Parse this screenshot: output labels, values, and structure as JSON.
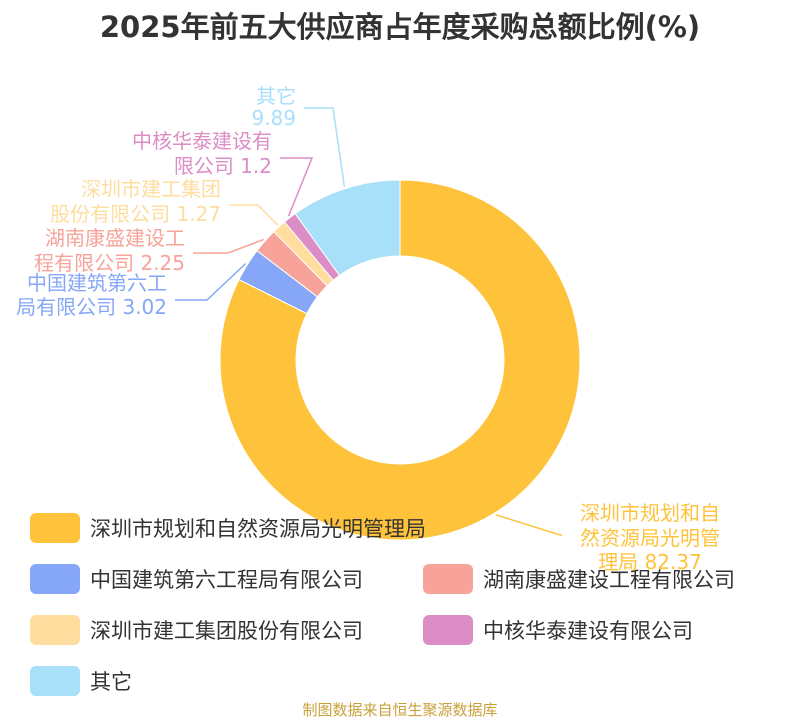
{
  "chart_data": {
    "type": "pie",
    "title": "2025年前五大供应商占年度采购总额比例(%)",
    "categories": [
      "深圳市规划和自然资源局光明管理局",
      "中国建筑第六工程局有限公司",
      "湖南康盛建设工程有限公司",
      "深圳市建工集团股份有限公司",
      "中核华泰建设有限公司",
      "其它"
    ],
    "values": [
      82.37,
      3.02,
      2.25,
      1.27,
      1.2,
      9.89
    ],
    "slice_labels": [
      [
        "深圳市规划和自",
        "然资源局光明管",
        "理局 82.37"
      ],
      [
        "中国建筑第六工",
        "局有限公司 3.02"
      ],
      [
        "湖南康盛建设工",
        "程有限公司 2.25"
      ],
      [
        "深圳市建工集团",
        "股份有限公司 1.27"
      ],
      [
        "中核华泰建设有",
        "限公司 1.2"
      ],
      [
        "其它",
        "9.89"
      ]
    ],
    "colors": [
      "#fec33a",
      "#86a7f7",
      "#f8a39a",
      "#fedd9e",
      "#dc8dc6",
      "#a8dff9"
    ],
    "donut": true,
    "legend_placement": "bottom"
  },
  "footer": "制图数据来自恒生聚源数据库"
}
